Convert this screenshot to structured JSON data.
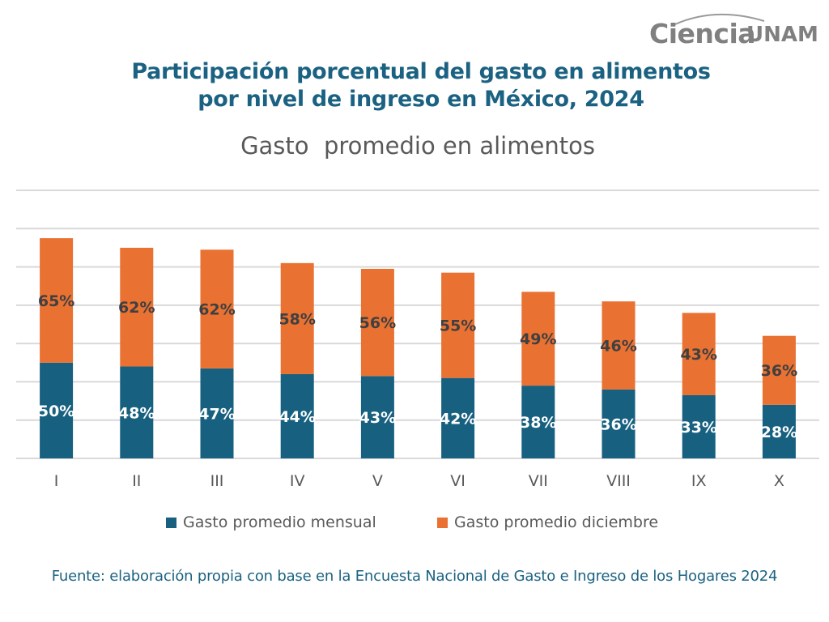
{
  "logo": {
    "text_main": "Ciencia",
    "text_secondary": "UNAM"
  },
  "header": {
    "title_line1": "Participación porcentual del gasto en alimentos",
    "title_line2": "por nivel de ingreso en México, 2024"
  },
  "source": "Fuente: elaboración propia con base en la Encuesta Nacional de Gasto e Ingreso de los Hogares 2024",
  "colors": {
    "mensual": "#17607f",
    "diciembre": "#e97132",
    "grid": "#d9d9d9",
    "axis_text": "#595959"
  },
  "chart_data": {
    "type": "bar",
    "stacked": true,
    "title": "Gasto  promedio en alimentos",
    "categories": [
      "I",
      "II",
      "III",
      "IV",
      "V",
      "VI",
      "VII",
      "VIII",
      "IX",
      "X"
    ],
    "series": [
      {
        "name": "Gasto promedio mensual",
        "values": [
          50,
          48,
          47,
          44,
          43,
          42,
          38,
          36,
          33,
          28
        ],
        "labels": [
          "50%",
          "48%",
          "47%",
          "44%",
          "43%",
          "42%",
          "38%",
          "36%",
          "33%",
          "28%"
        ]
      },
      {
        "name": "Gasto promedio diciembre",
        "values": [
          65,
          62,
          62,
          58,
          56,
          55,
          49,
          46,
          43,
          36
        ],
        "labels": [
          "65%",
          "62%",
          "62%",
          "58%",
          "56%",
          "55%",
          "49%",
          "46%",
          "43%",
          "36%"
        ]
      }
    ],
    "ylim": [
      0,
      140
    ],
    "ygrid_step": 20,
    "grid": true,
    "legend_position": "bottom",
    "xlabel": "",
    "ylabel": ""
  }
}
